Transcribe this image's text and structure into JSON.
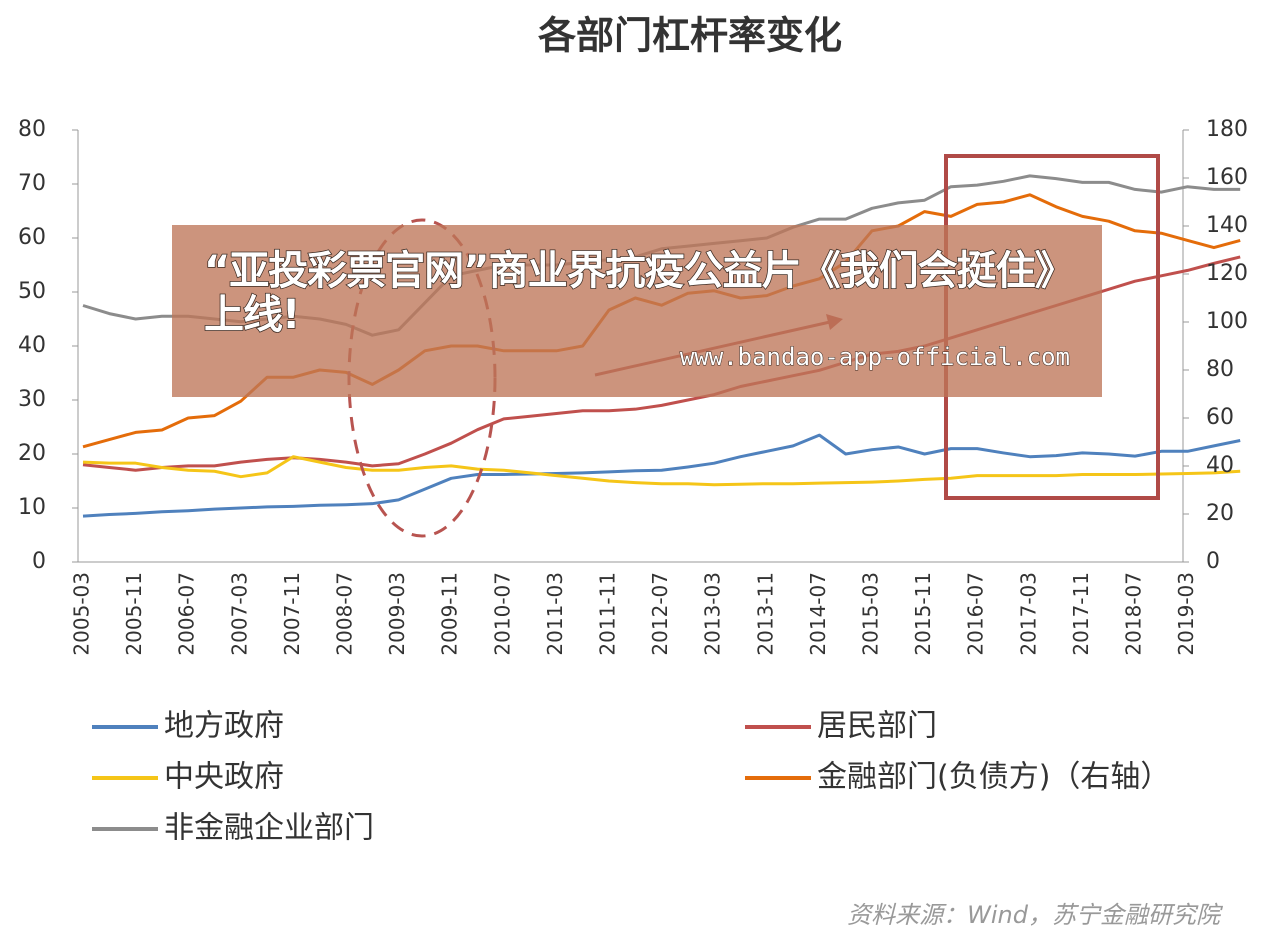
{
  "chart_data": {
    "type": "line",
    "title": "各部门杠杆率变化",
    "categories": [
      "2005-03",
      null,
      "2005-11",
      null,
      "2006-07",
      null,
      "2007-03",
      null,
      "2007-11",
      null,
      "2008-07",
      null,
      "2009-03",
      null,
      "2009-11",
      null,
      "2010-07",
      null,
      "2011-03",
      null,
      "2011-11",
      null,
      "2012-07",
      null,
      "2013-03",
      null,
      "2013-11",
      null,
      "2014-07",
      null,
      "2015-03",
      null,
      "2015-11",
      null,
      "2016-07",
      null,
      "2017-03",
      null,
      "2017-11",
      null,
      "2018-07",
      null,
      "2019-03",
      null,
      null
    ],
    "ylim": [
      0,
      80
    ],
    "yticks": [
      0,
      10,
      20,
      30,
      40,
      50,
      60,
      70,
      80
    ],
    "y2lim": [
      0,
      180
    ],
    "y2ticks": [
      0,
      20,
      40,
      60,
      80,
      100,
      120,
      140,
      160,
      180
    ],
    "series": [
      {
        "name": "地方政府",
        "color": "#4f81bd",
        "values": [
          8.5,
          8.8,
          9,
          9.3,
          9.5,
          9.8,
          10,
          10.2,
          10.3,
          10.5,
          10.6,
          10.8,
          11.5,
          13.5,
          15.5,
          16.2,
          16.2,
          16.3,
          16.4,
          16.5,
          16.7,
          16.9,
          17,
          17.6,
          18.3,
          19.5,
          20.5,
          21.5,
          23.5,
          20,
          20.8,
          21.3,
          20,
          21,
          21,
          20.2,
          19.5,
          19.7,
          20.2,
          20,
          19.6,
          20.5,
          20.5,
          21.5,
          22.5
        ]
      },
      {
        "name": "居民部门",
        "color": "#c0504d",
        "values": [
          18,
          17.5,
          17,
          17.5,
          17.8,
          17.8,
          18.5,
          19,
          19.3,
          19,
          18.5,
          17.8,
          18.2,
          20,
          22,
          24.5,
          26.5,
          27,
          27.5,
          28,
          28,
          28.3,
          29,
          30,
          31,
          32.5,
          33.5,
          34.5,
          35.5,
          37,
          38.5,
          39,
          40,
          41.5,
          43,
          44.5,
          46,
          47.5,
          49,
          50.5,
          52,
          53,
          54,
          55.3,
          56.5
        ]
      },
      {
        "name": "中央政府",
        "color": "#f5c518",
        "values": [
          18.5,
          18.3,
          18.3,
          17.5,
          17,
          16.8,
          15.8,
          16.5,
          19.5,
          18.5,
          17.5,
          17,
          17,
          17.5,
          17.8,
          17.2,
          17,
          16.5,
          16,
          15.5,
          15,
          14.7,
          14.5,
          14.5,
          14.3,
          14.4,
          14.5,
          14.5,
          14.6,
          14.7,
          14.8,
          15,
          15.3,
          15.5,
          16,
          16,
          16,
          16,
          16.2,
          16.2,
          16.2,
          16.3,
          16.4,
          16.5,
          16.8
        ]
      },
      {
        "name": "金融部门(负债方)（右轴）",
        "color": "#e46c0a",
        "axis": "y2",
        "values": [
          48,
          51,
          54,
          55,
          60,
          61,
          67,
          77,
          77,
          80,
          79,
          74,
          80,
          88,
          90,
          90,
          88,
          88,
          88,
          90,
          105,
          110,
          107,
          112,
          113,
          110,
          111,
          115,
          118,
          125,
          138,
          140,
          146,
          144,
          149,
          150,
          153,
          148,
          144,
          142,
          138,
          137,
          134,
          131,
          134
        ]
      },
      {
        "name": "非金融企业部门",
        "color": "#8c8c8c",
        "values": [
          47.5,
          46,
          45,
          45.5,
          45.5,
          45,
          44.5,
          45,
          45.5,
          45,
          44,
          42,
          43,
          48,
          53,
          54,
          55,
          55,
          55,
          55.5,
          56,
          56.5,
          58,
          58.5,
          59,
          59.5,
          60,
          62,
          63.5,
          63.5,
          65.5,
          66.5,
          67,
          69.5,
          69.8,
          70.5,
          71.5,
          71,
          70.3,
          70.3,
          69,
          68.5,
          69.5,
          69,
          69
        ]
      }
    ],
    "source": "资料来源：Wind，苏宁金融研究院"
  },
  "banner": {
    "title": "“亚投彩票官网”商业界抗疫公益片《我们会挺住》上线!",
    "url": "www.bandao-app-official.com"
  }
}
